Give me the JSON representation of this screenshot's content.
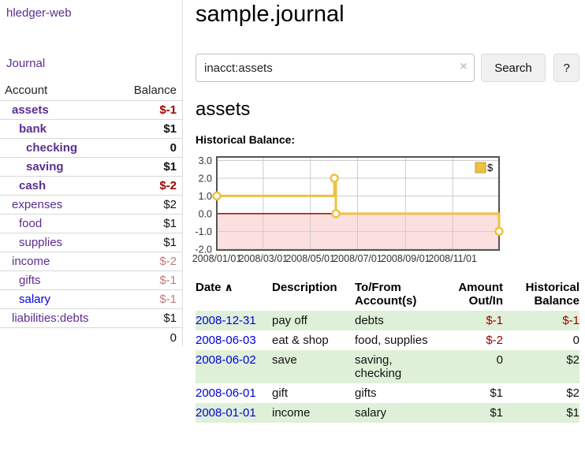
{
  "app": {
    "title": "hledger-web"
  },
  "sidebar": {
    "nav_journal": "Journal",
    "accounts_table": {
      "headers": [
        "Account",
        "Balance"
      ],
      "rows": [
        {
          "account": "assets",
          "balance": "$-1",
          "depth": 1,
          "matched": true,
          "balance_style": "negative"
        },
        {
          "account": "bank",
          "balance": "$1",
          "depth": 2,
          "matched": true,
          "balance_style": "normal"
        },
        {
          "account": "checking",
          "balance": "0",
          "depth": 3,
          "matched": true,
          "balance_style": "normal"
        },
        {
          "account": "saving",
          "balance": "$1",
          "depth": 3,
          "matched": true,
          "balance_style": "normal"
        },
        {
          "account": "cash",
          "balance": "$-2",
          "depth": 2,
          "matched": true,
          "balance_style": "negative"
        },
        {
          "account": "expenses",
          "balance": "$2",
          "depth": 1,
          "matched": false,
          "balance_style": "normal"
        },
        {
          "account": "food",
          "balance": "$1",
          "depth": 2,
          "matched": false,
          "balance_style": "normal"
        },
        {
          "account": "supplies",
          "balance": "$1",
          "depth": 2,
          "matched": false,
          "balance_style": "normal"
        },
        {
          "account": "income",
          "balance": "$-2",
          "depth": 1,
          "matched": false,
          "balance_style": "negative-muted"
        },
        {
          "account": "gifts",
          "balance": "$-1",
          "depth": 2,
          "matched": false,
          "balance_style": "negative-muted"
        },
        {
          "account": "salary",
          "balance": "$-1",
          "depth": 2,
          "matched": false,
          "balance_style": "negative-muted",
          "link_color": "blue"
        },
        {
          "account": "liabilities:debts",
          "balance": "$1",
          "depth": 1,
          "matched": false,
          "balance_style": "normal"
        }
      ],
      "total": "0"
    }
  },
  "main": {
    "title": "sample.journal",
    "search": {
      "value": "inacct:assets",
      "button_label": "Search",
      "help_label": "?"
    },
    "account_heading": "assets",
    "register_table": {
      "headers": [
        "Date",
        "Description",
        "To/From Account(s)",
        "Amount Out/In",
        "Historical Balance"
      ],
      "sorted_by": "Date ascending",
      "rows": [
        {
          "date": "2008-12-31",
          "description": "pay off",
          "accounts": "debts",
          "amount": "$-1",
          "balance": "$-1",
          "amount_negative": true,
          "balance_negative": true,
          "striped": true
        },
        {
          "date": "2008-06-03",
          "description": "eat & shop",
          "accounts": "food, supplies",
          "amount": "$-2",
          "balance": "0",
          "amount_negative": true,
          "balance_negative": false,
          "striped": false
        },
        {
          "date": "2008-06-02",
          "description": "save",
          "accounts": "saving, checking",
          "amount": "0",
          "balance": "$2",
          "amount_negative": false,
          "balance_negative": false,
          "striped": true
        },
        {
          "date": "2008-06-01",
          "description": "gift",
          "accounts": "gifts",
          "amount": "$1",
          "balance": "$2",
          "amount_negative": false,
          "balance_negative": false,
          "striped": false
        },
        {
          "date": "2008-01-01",
          "description": "income",
          "accounts": "salary",
          "amount": "$1",
          "balance": "$1",
          "amount_negative": false,
          "balance_negative": false,
          "striped": true
        }
      ]
    }
  },
  "icons": {
    "sort_ascending": "∧",
    "clear_search": "×"
  },
  "colors": {
    "link_purple": "#5c2d91",
    "link_blue": "#0000e0",
    "negative_red": "#a00000",
    "negative_muted": "#c07c7c",
    "row_green": "#dff0d8"
  },
  "chart_data": {
    "type": "line",
    "title": "Historical Balance:",
    "step": true,
    "series": [
      {
        "name": "$",
        "color": "#edc240",
        "points": [
          {
            "x": "2008-01-01",
            "y": 1
          },
          {
            "x": "2008-06-01",
            "y": 2
          },
          {
            "x": "2008-06-03",
            "y": 0
          },
          {
            "x": "2008-12-31",
            "y": -1
          }
        ]
      }
    ],
    "x_range": [
      "2008-01-01",
      "2008-12-31"
    ],
    "x_ticks": [
      {
        "date": "2008-01-01",
        "label": "2008/01/01"
      },
      {
        "date": "2008-03-01",
        "label": "2008/03/01"
      },
      {
        "date": "2008-05-01",
        "label": "2008/05/01"
      },
      {
        "date": "2008-07-01",
        "label": "2008/07/01"
      },
      {
        "date": "2008-09-01",
        "label": "2008/09/01"
      },
      {
        "date": "2008-11-01",
        "label": "2008/11/01"
      }
    ],
    "y_ticks": [
      {
        "value": 3,
        "label": "3.0"
      },
      {
        "value": 2,
        "label": "2.0"
      },
      {
        "value": 1,
        "label": "1.0"
      },
      {
        "value": 0,
        "label": "0.0"
      },
      {
        "value": -1,
        "label": "-1.0"
      },
      {
        "value": -2,
        "label": "-2.0"
      }
    ],
    "ylim": [
      -2.05,
      3.2
    ],
    "grid": true,
    "legend_position": "top-right",
    "negative_region_color": "#fcdfdf",
    "zero_line_color": "#aa0000",
    "grid_color": "#cccccc",
    "border_color": "#545454"
  }
}
